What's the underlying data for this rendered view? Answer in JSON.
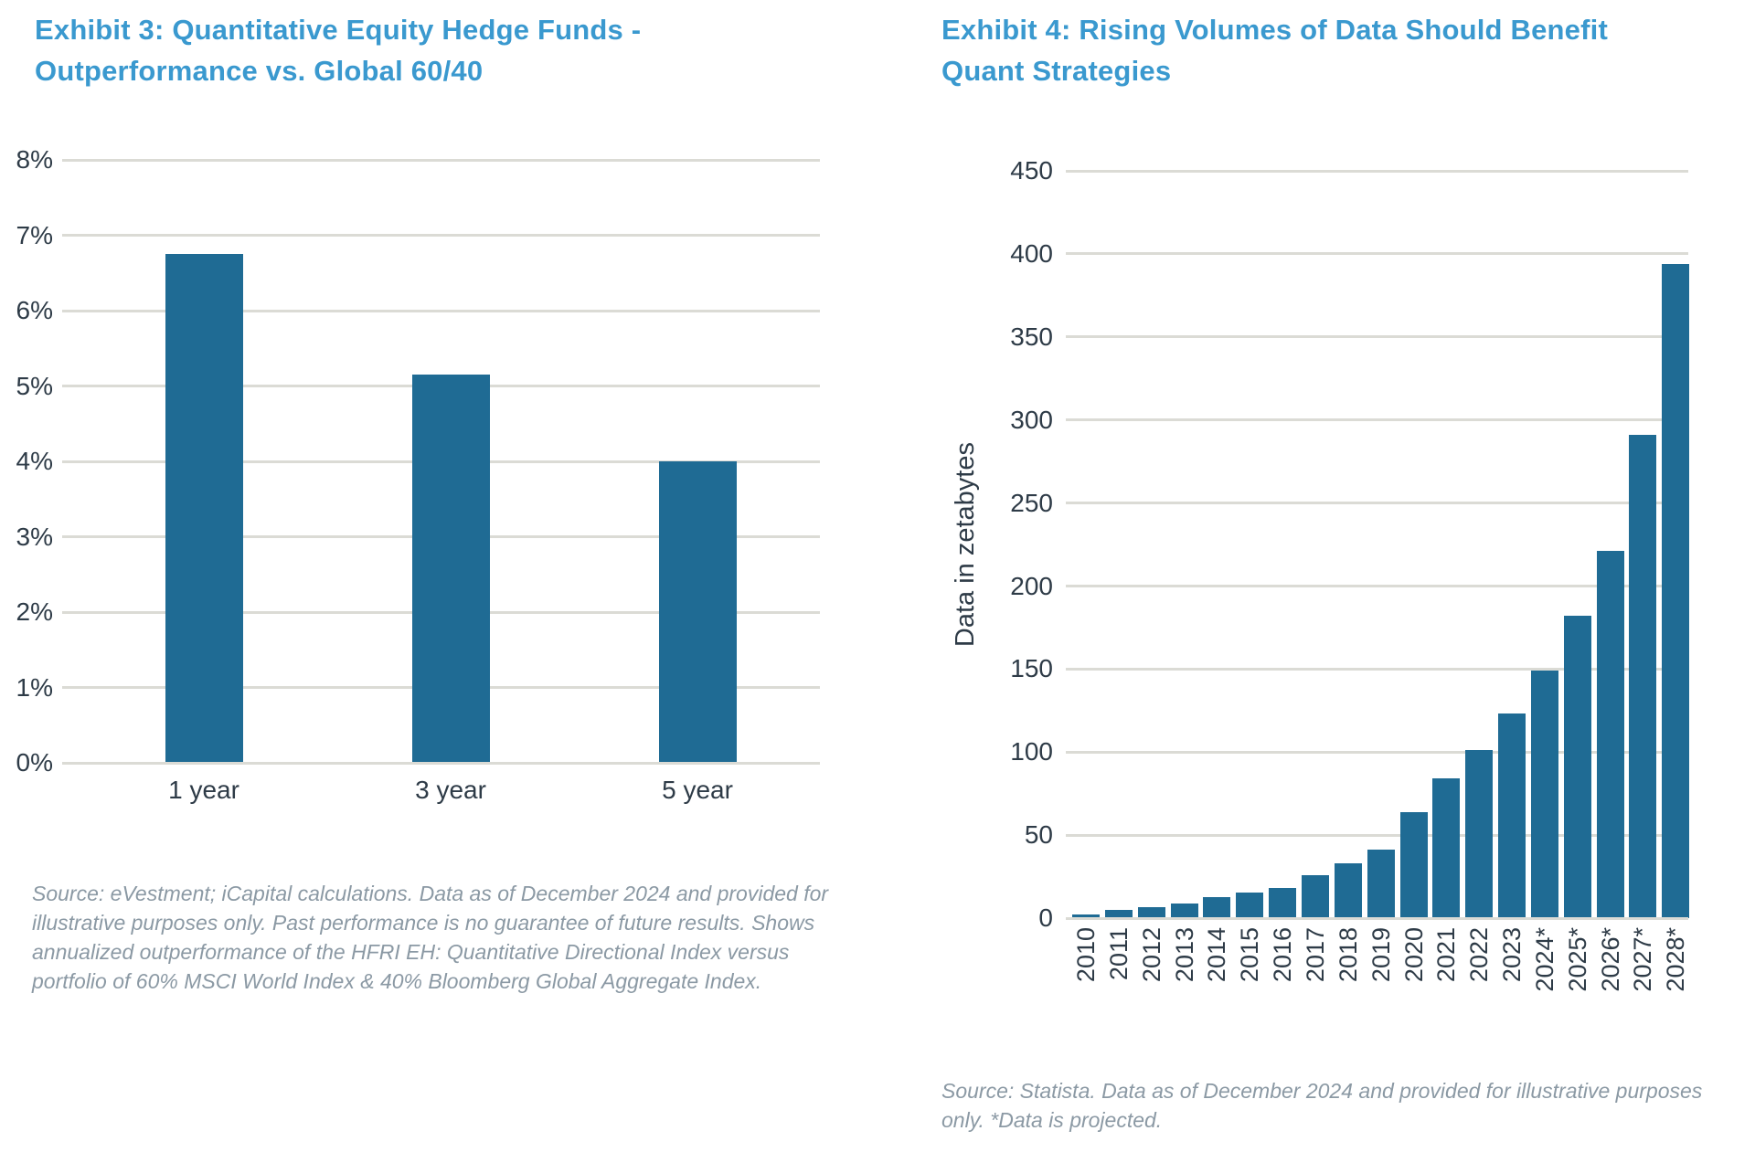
{
  "colors": {
    "title_blue": "#3A99CF",
    "bar_blue": "#1F6B94",
    "axis_text": "#2E3B47",
    "source_text": "#8B99A4",
    "gridline": "#DBDBD5"
  },
  "chart_data": [
    {
      "type": "bar",
      "title": "Exhibit 3: Quantitative Equity Hedge Funds - Outperformance vs. Global 60/40",
      "title_lines": [
        "Exhibit 3: Quantitative Equity Hedge Funds -",
        "Outperformance vs. Global 60/40"
      ],
      "categories": [
        "1 year",
        "3 year",
        "5 year"
      ],
      "values": [
        6.75,
        5.15,
        4.0
      ],
      "value_suffix": "%",
      "xlabel": "",
      "ylabel": "",
      "ylim": [
        0,
        8
      ],
      "ytick_step": 1,
      "ytick_labels": [
        "8%",
        "7%",
        "6%",
        "5%",
        "4%",
        "3%",
        "2%",
        "1%",
        "0%"
      ],
      "grid": true,
      "legend": "none",
      "source": "Source: eVestment; iCapital calculations. Data as of December 2024 and provided for illustrative purposes only. Past performance is no guarantee of future results. Shows annualized outperformance of the HFRI EH: Quantitative Directional Index versus portfolio of 60% MSCI World Index & 40% Bloomberg Global Aggregate Index."
    },
    {
      "type": "bar",
      "title": "Exhibit 4: Rising Volumes of Data Should Benefit Quant Strategies",
      "title_lines": [
        "Exhibit 4: Rising Volumes of Data Should Benefit",
        "Quant Strategies"
      ],
      "categories": [
        "2010",
        "2011",
        "2012",
        "2013",
        "2014",
        "2015",
        "2016",
        "2017",
        "2018",
        "2019",
        "2020",
        "2021",
        "2022",
        "2023",
        "2024*",
        "2025*",
        "2026*",
        "2027*",
        "2028*"
      ],
      "values": [
        2,
        5,
        6.5,
        9,
        12.5,
        15.5,
        18,
        26,
        33,
        41,
        64,
        84,
        101,
        123,
        149,
        182,
        221,
        291,
        394
      ],
      "xlabel": "",
      "ylabel": "Data in zetabytes",
      "ylim": [
        0,
        450
      ],
      "ytick_step": 50,
      "ytick_labels": [
        "450",
        "400",
        "350",
        "300",
        "250",
        "200",
        "150",
        "100",
        "50",
        "0"
      ],
      "grid": true,
      "legend": "none",
      "source": "Source: Statista. Data as of December 2024 and provided for illustrative purposes only. *Data is projected."
    }
  ]
}
